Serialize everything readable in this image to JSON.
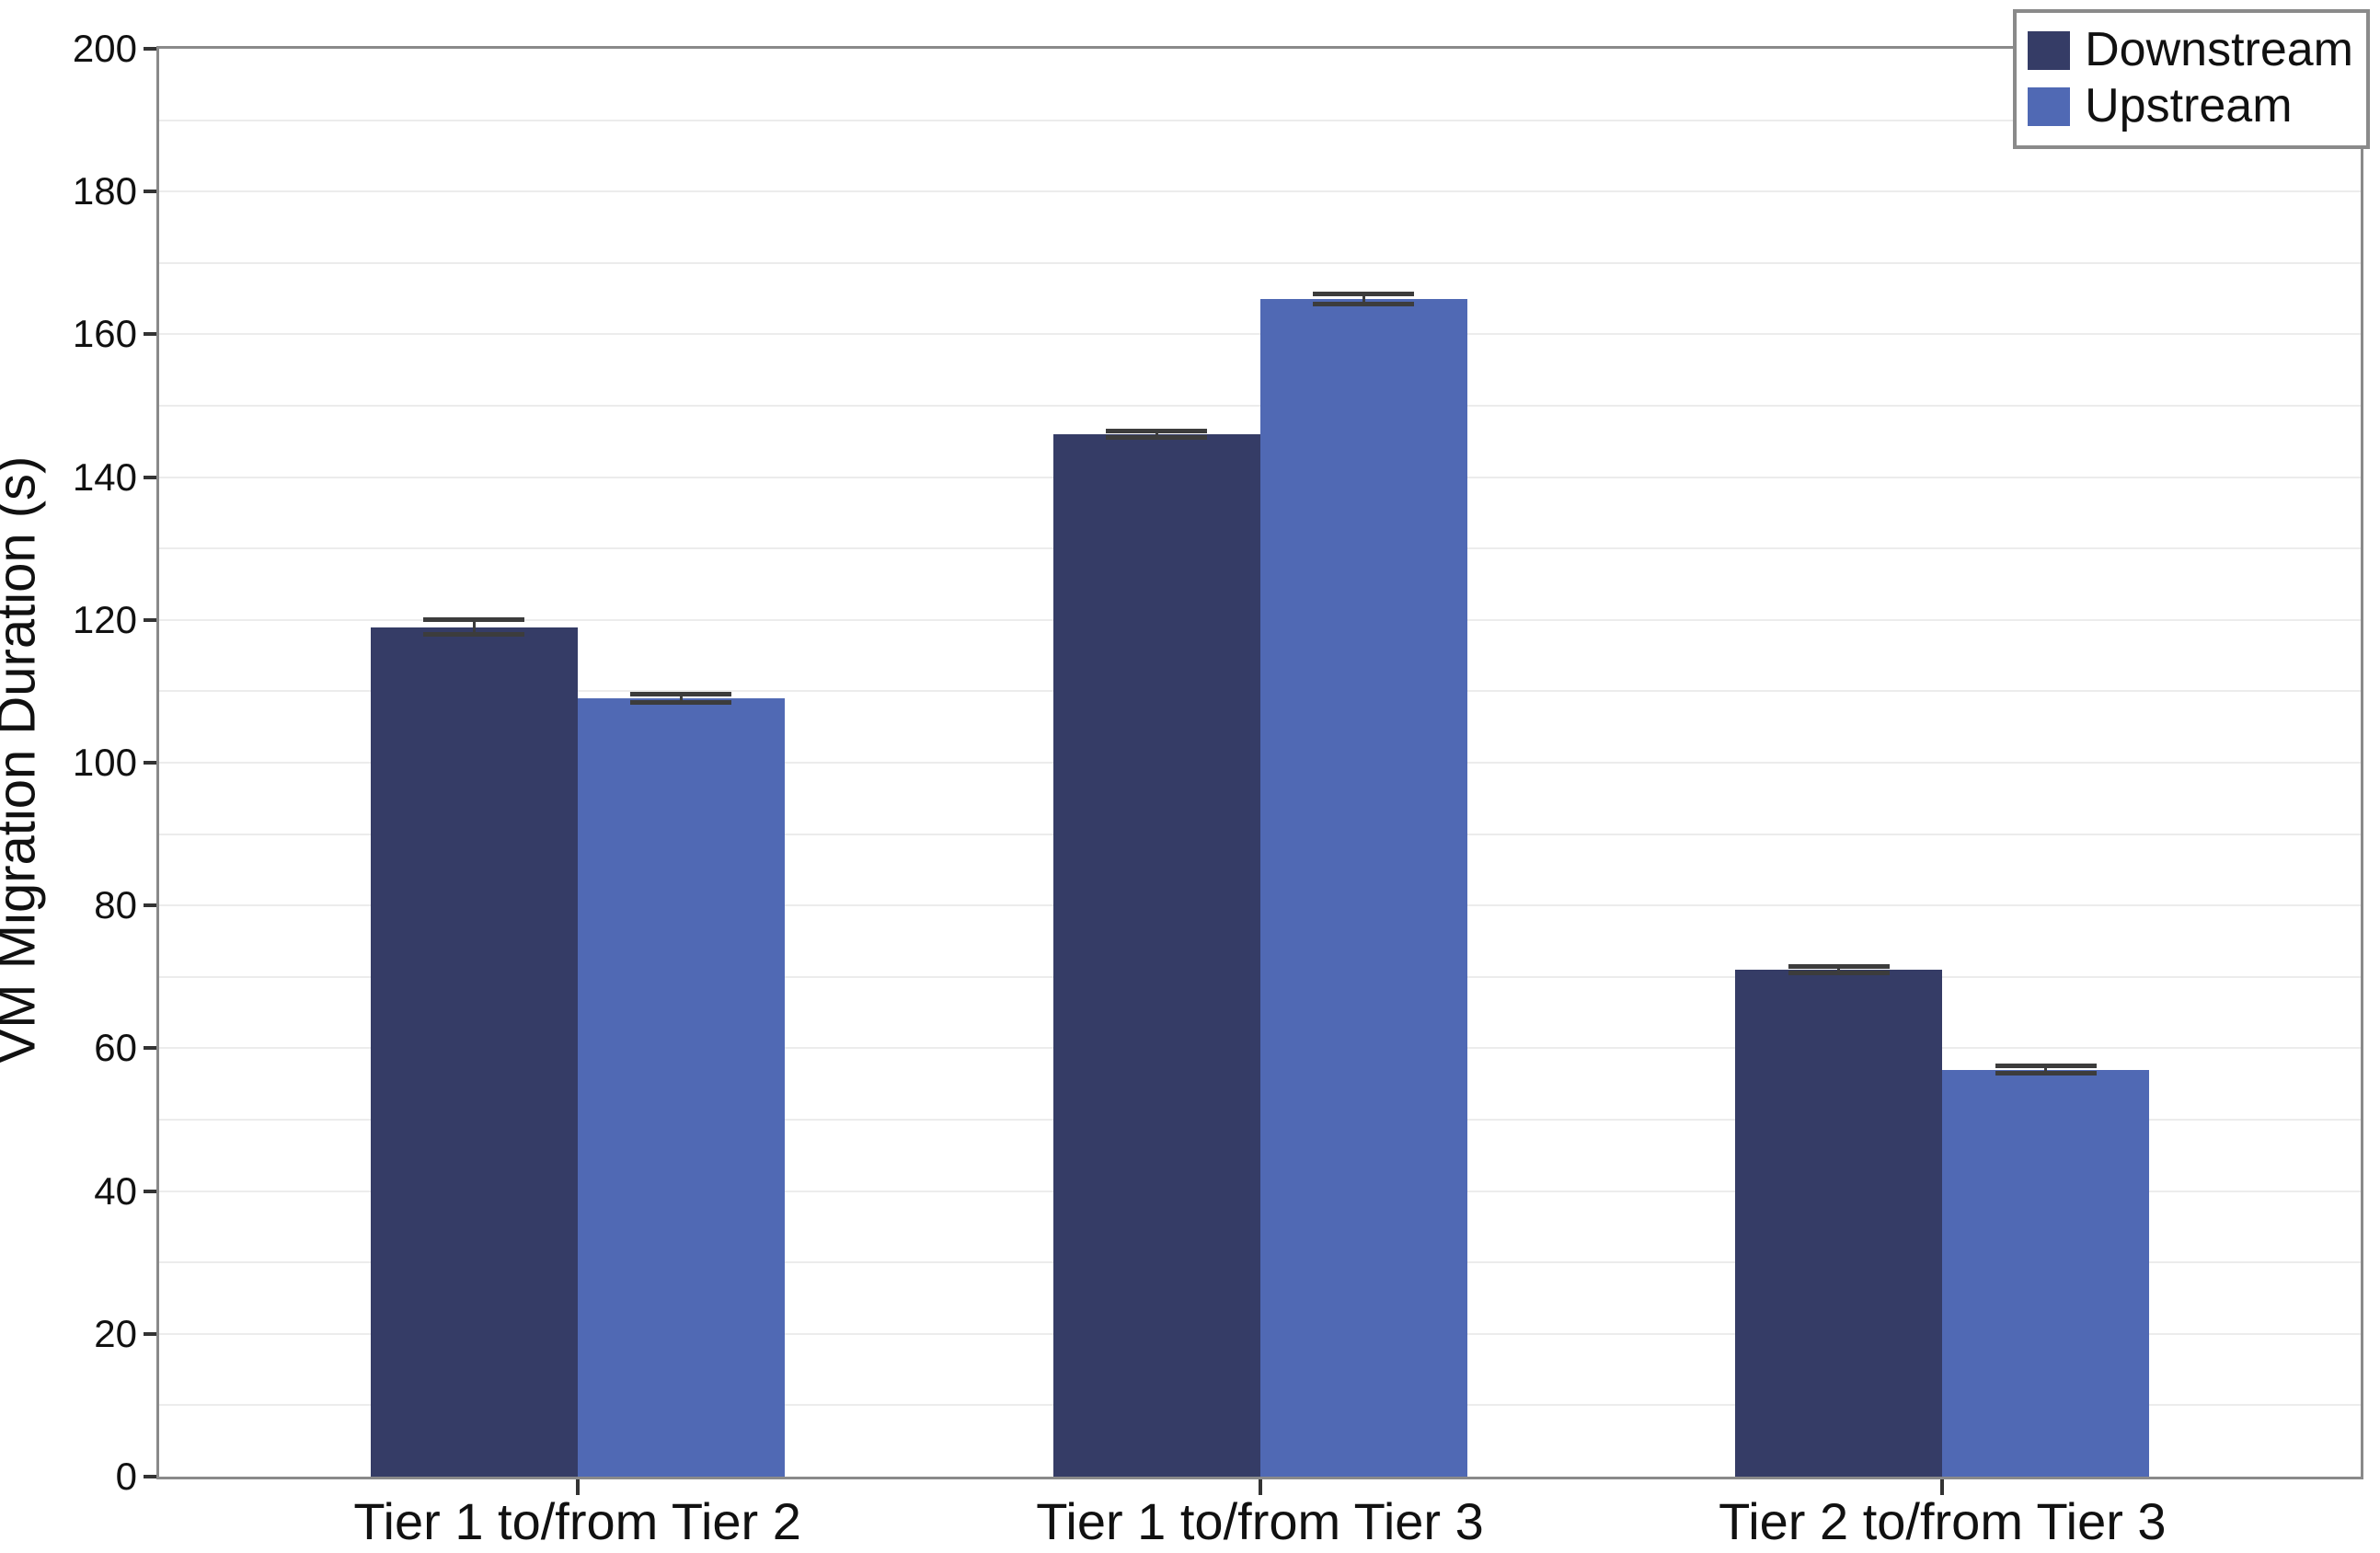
{
  "chart_data": {
    "type": "bar",
    "title": "",
    "xlabel": "",
    "ylabel": "VM Migration Duration (s)",
    "categories": [
      "Tier 1 to/from Tier 2",
      "Tier 1 to/from Tier 3",
      "Tier 2 to/from Tier 3"
    ],
    "series": [
      {
        "name": "Downstream",
        "color": "#353c66",
        "values": [
          119,
          146,
          71
        ],
        "errors": [
          1.0,
          0.5,
          0.5
        ]
      },
      {
        "name": "Upstream",
        "color": "#5069b4",
        "values": [
          109,
          165,
          57
        ],
        "errors": [
          0.6,
          0.7,
          0.5
        ]
      }
    ],
    "ylim": [
      0,
      200
    ],
    "ytick_step": 20,
    "grid_step": 10,
    "grid": true,
    "legend_position": "upper-right",
    "legend_entries": [
      "Downstream",
      "Upstream"
    ]
  },
  "style": {
    "axis_border_color": "#8a8a8a",
    "grid_color": "#ececec",
    "tick_color": "#333333",
    "errorbar_color": "#3c3c3c",
    "background": "#ffffff",
    "text_color": "#111111"
  }
}
